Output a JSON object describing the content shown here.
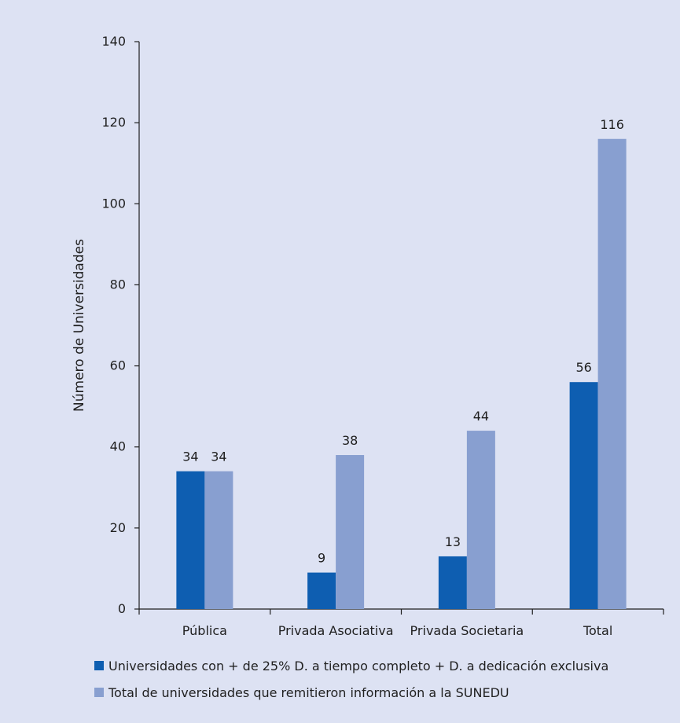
{
  "chart_data": {
    "type": "bar",
    "title": "",
    "xlabel": "",
    "ylabel": "Número de Universidades",
    "ylim": [
      0,
      140
    ],
    "yticks": [
      0,
      20,
      40,
      60,
      80,
      100,
      120,
      140
    ],
    "categories": [
      "Pública",
      "Privada Asociativa",
      "Privada Societaria",
      "Total"
    ],
    "series": [
      {
        "name": "Universidades con + de 25% D. a tiempo completo + D. a dedicación exclusiva",
        "color": "#0e5eb1",
        "values": [
          34,
          9,
          13,
          56
        ]
      },
      {
        "name": "Total de universidades que remitieron información a la SUNEDU",
        "color": "#889fd0",
        "values": [
          34,
          38,
          44,
          116
        ]
      }
    ],
    "data_labels": true,
    "grid": false,
    "legend_position": "bottom"
  },
  "colors": {
    "background": "#dde2f3",
    "axis": "#1f1f1f",
    "text": "#1f1f1f"
  }
}
